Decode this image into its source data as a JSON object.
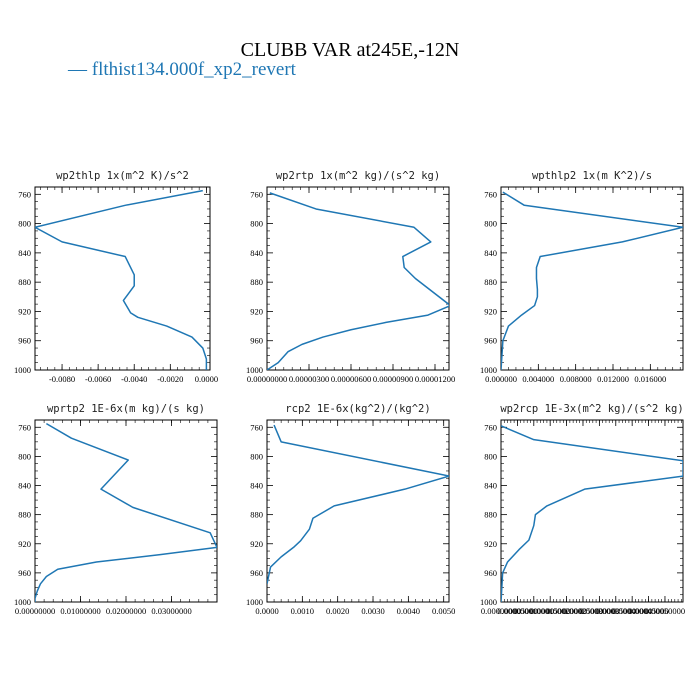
{
  "figure": {
    "title": "CLUBB VAR at245E,-12N",
    "legend": {
      "marker": "—",
      "label": "flthist134.000f_xp2_revert",
      "color": "#1f77b4"
    }
  },
  "chart_data": [
    {
      "type": "line",
      "title": "wp2thlp  1x(m^2 K)/s^2",
      "xlim": [
        -0.0095,
        0.0002
      ],
      "ylim": [
        1000,
        750
      ],
      "xticks": [
        -0.008,
        -0.006,
        -0.004,
        -0.002,
        0.0
      ],
      "xtick_labels": [
        "-0.0080",
        "-0.0060",
        "-0.0040",
        "-0.0020",
        "0.0000"
      ],
      "yticks": [
        760,
        800,
        840,
        880,
        920,
        960,
        1000
      ],
      "series": [
        {
          "color": "#1f77b4",
          "x": [
            -0.0002,
            -0.0045,
            -0.0095,
            -0.008,
            -0.0045,
            -0.004,
            -0.004,
            -0.0046,
            -0.0042,
            -0.0038,
            -0.0022,
            -0.0008,
            -0.0002,
            0.0,
            0.0
          ],
          "y": [
            755,
            775,
            805,
            825,
            845,
            870,
            885,
            905,
            922,
            928,
            940,
            955,
            970,
            985,
            1000
          ]
        }
      ]
    },
    {
      "type": "line",
      "title": "wp2rtp  1x(m^2 kg)/(s^2 kg)",
      "xlim": [
        0.0,
        1.3e-05
      ],
      "ylim": [
        1000,
        750
      ],
      "xticks": [
        0.0,
        3e-06,
        6e-06,
        9e-06,
        1.2e-05
      ],
      "xtick_labels": [
        "0.00000000",
        "0.00000300",
        "0.00000600",
        "0.00000900",
        "0.00001200"
      ],
      "yticks": [
        760,
        800,
        840,
        880,
        920,
        960,
        1000
      ],
      "series": [
        {
          "color": "#1f77b4",
          "x": [
            2e-07,
            3.5e-06,
            1.05e-05,
            1.17e-05,
            9.7e-06,
            9.8e-06,
            1.06e-05,
            1.31e-05,
            1.15e-05,
            8.5e-06,
            6e-06,
            4e-06,
            2.5e-06,
            1.5e-06,
            8e-07,
            0.0
          ],
          "y": [
            758,
            780,
            805,
            825,
            845,
            860,
            875,
            912,
            925,
            935,
            945,
            955,
            965,
            975,
            990,
            1000
          ]
        }
      ]
    },
    {
      "type": "line",
      "title": "wpthlp2  1x(m K^2)/s",
      "xlim": [
        0.0,
        0.0195
      ],
      "ylim": [
        1000,
        750
      ],
      "xticks": [
        0.0,
        0.004,
        0.008,
        0.012,
        0.016
      ],
      "xtick_labels": [
        "0.000000",
        "0.004000",
        "0.008000",
        "0.012000",
        "0.016000"
      ],
      "yticks": [
        760,
        800,
        840,
        880,
        920,
        960,
        1000
      ],
      "series": [
        {
          "color": "#1f77b4",
          "x": [
            0.0002,
            0.0025,
            0.0195,
            0.013,
            0.0042,
            0.0038,
            0.0038,
            0.0039,
            0.0039,
            0.0036,
            0.0022,
            0.0008,
            0.0002,
            0.0
          ],
          "y": [
            757,
            775,
            805,
            825,
            845,
            860,
            875,
            890,
            900,
            912,
            925,
            940,
            960,
            1000
          ]
        }
      ]
    },
    {
      "type": "line",
      "title": "wprtp2  1E-6x(m kg)/(s kg)",
      "xlim": [
        0.0,
        0.04
      ],
      "ylim": [
        1000,
        750
      ],
      "xticks": [
        0.0,
        0.01,
        0.02,
        0.03
      ],
      "xtick_labels": [
        "0.00000000",
        "0.01000000",
        "0.02000000",
        "0.03000000"
      ],
      "yticks": [
        760,
        800,
        840,
        880,
        920,
        960,
        1000
      ],
      "series": [
        {
          "color": "#1f77b4",
          "x": [
            0.0025,
            0.008,
            0.0205,
            0.0145,
            0.0215,
            0.0385,
            0.04,
            0.0275,
            0.0135,
            0.005,
            0.0025,
            0.0012,
            0.0005,
            0.0,
            0.0
          ],
          "y": [
            755,
            775,
            805,
            845,
            870,
            905,
            925,
            935,
            945,
            955,
            965,
            975,
            985,
            995,
            1000
          ]
        }
      ]
    },
    {
      "type": "line",
      "title": "rcp2  1E-6x(kg^2)/(kg^2)",
      "xlim": [
        0.0,
        0.00515
      ],
      "ylim": [
        1000,
        750
      ],
      "xticks": [
        0.0,
        0.001,
        0.002,
        0.003,
        0.004,
        0.005
      ],
      "xtick_labels": [
        "0.0000",
        "0.0010",
        "0.0020",
        "0.0030",
        "0.0040",
        "0.0050"
      ],
      "yticks": [
        760,
        800,
        840,
        880,
        920,
        960,
        1000
      ],
      "series": [
        {
          "color": "#1f77b4",
          "x": [
            0.0002,
            0.0004,
            0.00515,
            0.0039,
            0.0019,
            0.0013,
            0.0012,
            0.00095,
            0.00075,
            0.0004,
            0.0001,
            0.0
          ],
          "y": [
            757,
            780,
            827,
            845,
            868,
            885,
            900,
            916,
            925,
            938,
            952,
            975
          ]
        }
      ]
    },
    {
      "type": "line",
      "title": "wp2rcp  1E-3x(m^2 kg)/(s^2 kg)",
      "xlim": [
        0.0,
        0.000555
      ],
      "ylim": [
        1000,
        750
      ],
      "xticks": [
        0.0,
        5e-05,
        0.0001,
        0.00015,
        0.0002,
        0.00025,
        0.0003,
        0.00035,
        0.0004,
        0.00045,
        0.0005
      ],
      "xtick_labels": [
        "0.00000000",
        "0.00005000",
        "0.00010000",
        "0.00015000",
        "0.00020000",
        "0.00025000",
        "0.00030000",
        "0.00035000",
        "0.00040000",
        "0.00045000",
        "0.00050000"
      ],
      "yticks": [
        760,
        800,
        840,
        880,
        920,
        960,
        1000
      ],
      "series": [
        {
          "color": "#1f77b4",
          "x": [
            0.0,
            0.0001,
            0.000555,
            0.000555,
            0.000255,
            0.00014,
            0.000105,
            0.0001,
            8.5e-05,
            5.5e-05,
            2e-05,
            5e-06,
            0.0
          ],
          "y": [
            758,
            777,
            806,
            827,
            845,
            868,
            880,
            895,
            915,
            928,
            945,
            960,
            1000
          ]
        }
      ]
    }
  ]
}
